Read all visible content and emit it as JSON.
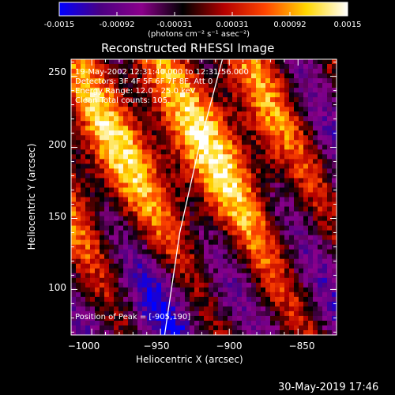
{
  "colorbar": {
    "ticks": [
      "-0.0015",
      "-0.00092",
      "-0.00031",
      "0.00031",
      "0.00092",
      "0.0015"
    ],
    "units_label": "(photons cm⁻² s⁻¹ asec⁻²)"
  },
  "title": "Reconstructed RHESSI Image",
  "info": {
    "time": "19-May-2002 12:31:40.000 to 12:31:56.000",
    "detectors": "Detectors: 3F 4F 5F 6F 7F 8F, Att 0",
    "energy": "Energy Range: 12.0 - 25.0 keV",
    "clean": "Clean    Total counts: 105."
  },
  "peak": "Position of Peak = [-905,190]",
  "x_axis": {
    "label": "Heliocentric X (arcsec)",
    "ticks": [
      "−1000",
      "−950",
      "−900",
      "−850"
    ]
  },
  "y_axis": {
    "label": "Heliocentric Y (arcsec)",
    "ticks": [
      "250",
      "200",
      "150",
      "100"
    ]
  },
  "footer": {
    "timestamp": "30-May-2019 17:46"
  },
  "chart_data": {
    "type": "heatmap",
    "title": "Reconstructed RHESSI Image",
    "xlabel": "Heliocentric X (arcsec)",
    "ylabel": "Heliocentric Y (arcsec)",
    "xlim": [
      -1015,
      -822
    ],
    "ylim": [
      68,
      262
    ],
    "colorbar_range": [
      -0.0015,
      0.0015
    ],
    "colormap": [
      "#0000ff",
      "#4b0082",
      "#8b008b",
      "#000000",
      "#b40000",
      "#ff4500",
      "#ffd700",
      "#ffffff"
    ],
    "peak_position": [
      -905,
      190
    ],
    "limb_curve": [
      [
        -905,
        262
      ],
      [
        -922,
        200
      ],
      [
        -936,
        140
      ],
      [
        -947,
        68
      ]
    ]
  }
}
